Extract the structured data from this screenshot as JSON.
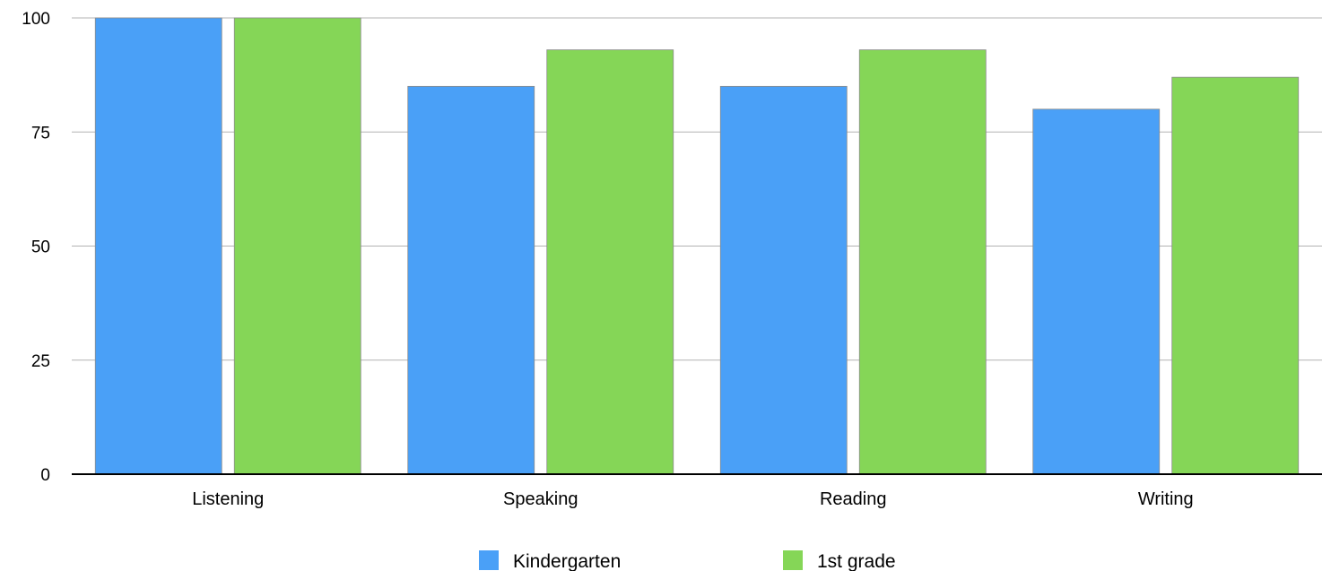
{
  "chart_data": {
    "type": "bar",
    "categories": [
      "Listening",
      "Speaking",
      "Reading",
      "Writing"
    ],
    "series": [
      {
        "name": "Kindergarten",
        "values": [
          100,
          85,
          85,
          80
        ],
        "color": "#4aa0f7"
      },
      {
        "name": "1st grade",
        "values": [
          100,
          93,
          93,
          87
        ],
        "color": "#85d657"
      }
    ],
    "yticks": [
      0,
      25,
      50,
      75,
      100
    ],
    "ylim": [
      0,
      100
    ],
    "grid": true,
    "legend_position": "bottom-center",
    "title": "",
    "xlabel": "",
    "ylabel": ""
  }
}
